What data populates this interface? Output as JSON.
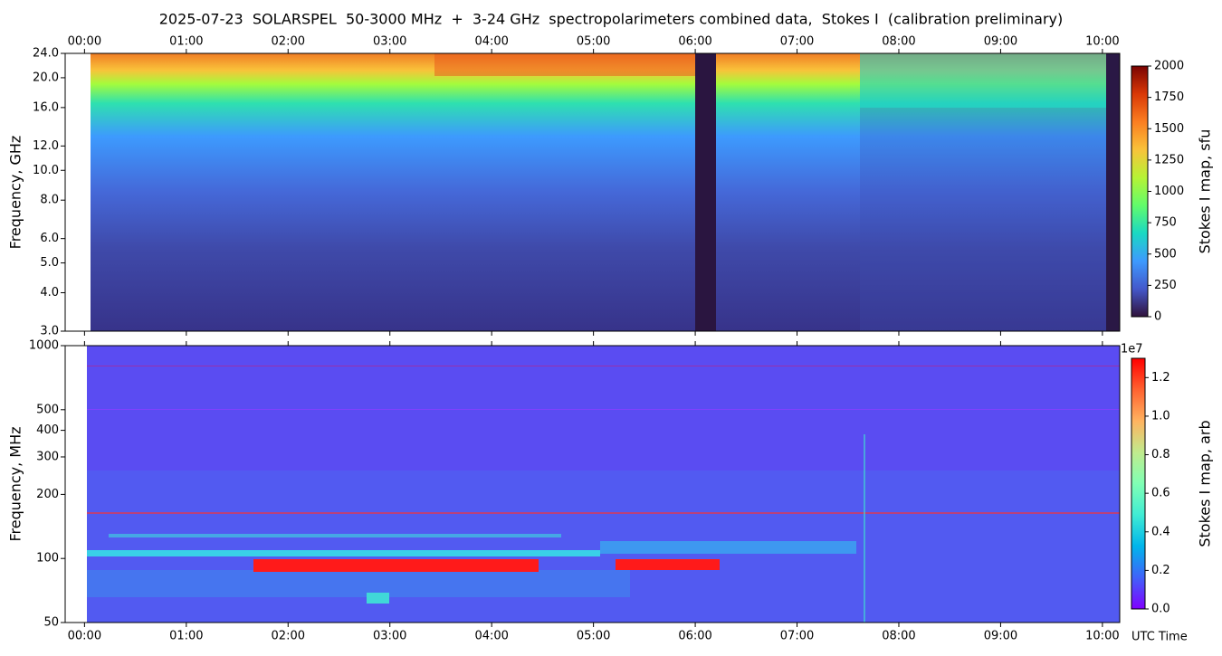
{
  "chart_data": [
    {
      "type": "heatmap",
      "title": "2025-07-23  SOLARSPEL  50-3000 MHz  +  3-24 GHz  spectropolarimeters combined data,  Stokes I  (calibration preliminary)",
      "ylabel": "Frequency, GHz",
      "xlim": [
        -0.19,
        10.17
      ],
      "xticks": [
        {
          "value": 0,
          "label": "00:00"
        },
        {
          "value": 1,
          "label": "01:00"
        },
        {
          "value": 2,
          "label": "02:00"
        },
        {
          "value": 3,
          "label": "03:00"
        },
        {
          "value": 4,
          "label": "04:00"
        },
        {
          "value": 5,
          "label": "05:00"
        },
        {
          "value": 6,
          "label": "06:00"
        },
        {
          "value": 7,
          "label": "07:00"
        },
        {
          "value": 8,
          "label": "08:00"
        },
        {
          "value": 9,
          "label": "09:00"
        },
        {
          "value": 10,
          "label": "10:00"
        }
      ],
      "xtick_side": "top",
      "ylim": [
        3,
        24
      ],
      "yscale": "log",
      "yticks": [
        {
          "value": 3,
          "label": "3.0"
        },
        {
          "value": 4,
          "label": "4.0"
        },
        {
          "value": 5,
          "label": "5.0"
        },
        {
          "value": 6,
          "label": "6.0"
        },
        {
          "value": 8,
          "label": "8.0"
        },
        {
          "value": 10,
          "label": "10.0"
        },
        {
          "value": 12,
          "label": "12.0"
        },
        {
          "value": 16,
          "label": "16.0"
        },
        {
          "value": 20,
          "label": "20.0"
        },
        {
          "value": 24,
          "label": "24.0"
        }
      ],
      "colorbar": {
        "label": "Stokes I map, sfu",
        "colormap": "turbo",
        "lim": [
          0,
          2000
        ],
        "ticks": [
          0,
          250,
          500,
          750,
          1000,
          1250,
          1500,
          1750,
          2000
        ]
      }
    },
    {
      "type": "heatmap",
      "ylabel": "Frequency, MHz",
      "xlabel": "UTC Time",
      "xlim": [
        -0.19,
        10.17
      ],
      "xticks": [
        {
          "value": 0,
          "label": "00:00"
        },
        {
          "value": 1,
          "label": "01:00"
        },
        {
          "value": 2,
          "label": "02:00"
        },
        {
          "value": 3,
          "label": "03:00"
        },
        {
          "value": 4,
          "label": "04:00"
        },
        {
          "value": 5,
          "label": "05:00"
        },
        {
          "value": 6,
          "label": "06:00"
        },
        {
          "value": 7,
          "label": "07:00"
        },
        {
          "value": 8,
          "label": "08:00"
        },
        {
          "value": 9,
          "label": "09:00"
        },
        {
          "value": 10,
          "label": "10:00"
        }
      ],
      "xtick_side": "bottom",
      "ylim": [
        50,
        1000
      ],
      "yscale": "log",
      "yticks": [
        50,
        100,
        200,
        300,
        400,
        500,
        1000
      ],
      "colorbar": {
        "label": "Stokes I map, arb",
        "colormap": "rainbow",
        "lim": [
          0,
          13000000
        ],
        "offset_label": "1e7",
        "ticks": [
          {
            "value": 0,
            "label": "0.0"
          },
          {
            "value": 2000000,
            "label": "0.2"
          },
          {
            "value": 4000000,
            "label": "0.4"
          },
          {
            "value": 6000000,
            "label": "0.6"
          },
          {
            "value": 8000000,
            "label": "0.8"
          },
          {
            "value": 10000000,
            "label": "1.0"
          },
          {
            "value": 12000000,
            "label": "1.2"
          }
        ]
      }
    }
  ]
}
